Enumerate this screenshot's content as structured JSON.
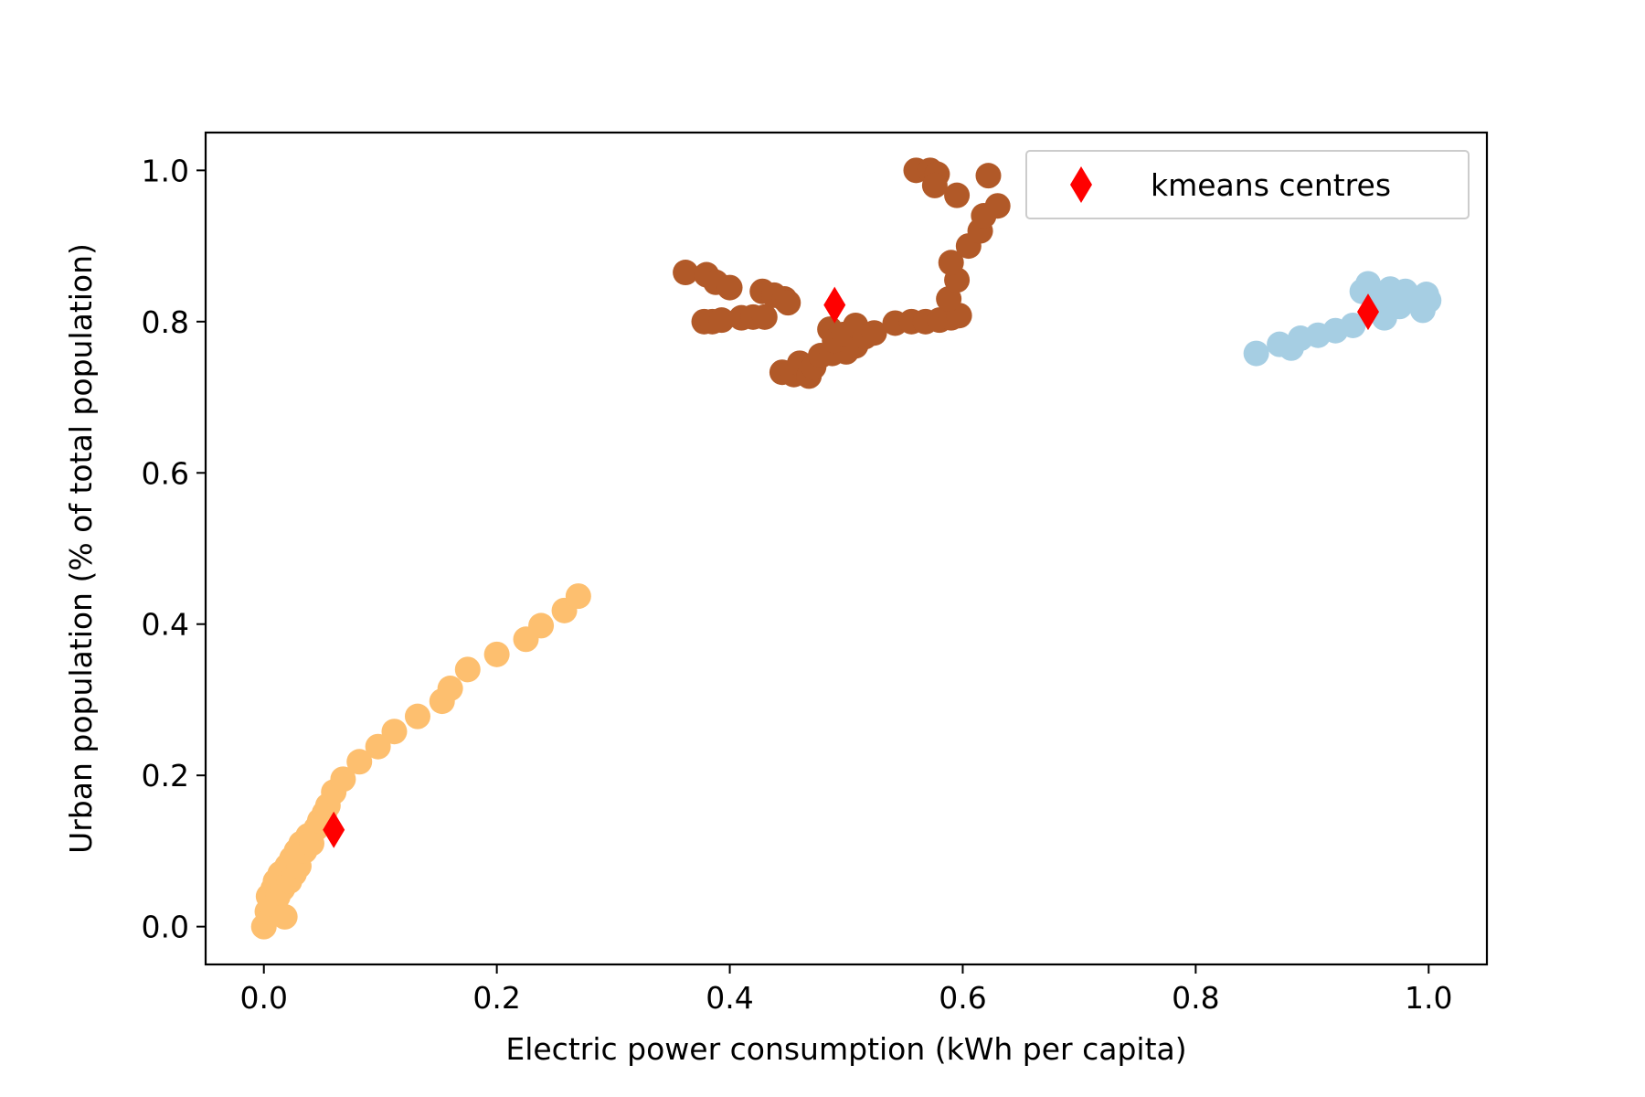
{
  "chart_data": {
    "type": "scatter",
    "xlabel": "Electric power consumption (kWh per capita)",
    "ylabel": "Urban population (% of total population)",
    "xlim": [
      -0.05,
      1.05
    ],
    "ylim": [
      -0.05,
      1.05
    ],
    "xticks": [
      0.0,
      0.2,
      0.4,
      0.6,
      0.8,
      1.0
    ],
    "yticks": [
      0.0,
      0.2,
      0.4,
      0.6,
      0.8,
      1.0
    ],
    "xtick_labels": [
      "0.0",
      "0.2",
      "0.4",
      "0.6",
      "0.8",
      "1.0"
    ],
    "ytick_labels": [
      "0.0",
      "0.2",
      "0.4",
      "0.6",
      "0.8",
      "1.0"
    ],
    "legend_position": "top-right",
    "grid": false,
    "series": [
      {
        "color": "#fdbf6f",
        "marker": "circle",
        "points": [
          [
            0.0,
            0.0
          ],
          [
            0.003,
            0.02
          ],
          [
            0.004,
            0.04
          ],
          [
            0.006,
            0.03
          ],
          [
            0.008,
            0.05
          ],
          [
            0.01,
            0.06
          ],
          [
            0.012,
            0.04
          ],
          [
            0.014,
            0.07
          ],
          [
            0.016,
            0.05
          ],
          [
            0.018,
            0.013
          ],
          [
            0.02,
            0.08
          ],
          [
            0.022,
            0.06
          ],
          [
            0.024,
            0.09
          ],
          [
            0.026,
            0.07
          ],
          [
            0.028,
            0.1
          ],
          [
            0.03,
            0.08
          ],
          [
            0.032,
            0.11
          ],
          [
            0.035,
            0.1
          ],
          [
            0.038,
            0.12
          ],
          [
            0.041,
            0.11
          ],
          [
            0.045,
            0.13
          ],
          [
            0.048,
            0.14
          ],
          [
            0.052,
            0.15
          ],
          [
            0.055,
            0.16
          ],
          [
            0.06,
            0.178
          ],
          [
            0.068,
            0.195
          ],
          [
            0.082,
            0.218
          ],
          [
            0.098,
            0.238
          ],
          [
            0.112,
            0.258
          ],
          [
            0.132,
            0.278
          ],
          [
            0.153,
            0.298
          ],
          [
            0.16,
            0.315
          ],
          [
            0.175,
            0.34
          ],
          [
            0.2,
            0.36
          ],
          [
            0.225,
            0.38
          ],
          [
            0.238,
            0.398
          ],
          [
            0.258,
            0.418
          ],
          [
            0.27,
            0.437
          ]
        ]
      },
      {
        "color": "#b15928",
        "marker": "circle",
        "points": [
          [
            0.362,
            0.865
          ],
          [
            0.38,
            0.862
          ],
          [
            0.388,
            0.852
          ],
          [
            0.4,
            0.845
          ],
          [
            0.378,
            0.8
          ],
          [
            0.385,
            0.8
          ],
          [
            0.393,
            0.802
          ],
          [
            0.41,
            0.805
          ],
          [
            0.42,
            0.806
          ],
          [
            0.43,
            0.806
          ],
          [
            0.428,
            0.84
          ],
          [
            0.438,
            0.835
          ],
          [
            0.447,
            0.83
          ],
          [
            0.45,
            0.825
          ],
          [
            0.445,
            0.733
          ],
          [
            0.455,
            0.73
          ],
          [
            0.46,
            0.745
          ],
          [
            0.468,
            0.728
          ],
          [
            0.472,
            0.74
          ],
          [
            0.478,
            0.755
          ],
          [
            0.488,
            0.758
          ],
          [
            0.5,
            0.76
          ],
          [
            0.508,
            0.768
          ],
          [
            0.486,
            0.79
          ],
          [
            0.49,
            0.775
          ],
          [
            0.498,
            0.783
          ],
          [
            0.508,
            0.795
          ],
          [
            0.516,
            0.78
          ],
          [
            0.524,
            0.785
          ],
          [
            0.542,
            0.798
          ],
          [
            0.556,
            0.8
          ],
          [
            0.568,
            0.8
          ],
          [
            0.58,
            0.802
          ],
          [
            0.59,
            0.805
          ],
          [
            0.597,
            0.808
          ],
          [
            0.588,
            0.83
          ],
          [
            0.595,
            0.855
          ],
          [
            0.59,
            0.878
          ],
          [
            0.605,
            0.9
          ],
          [
            0.615,
            0.92
          ],
          [
            0.618,
            0.94
          ],
          [
            0.63,
            0.953
          ],
          [
            0.56,
            1.0
          ],
          [
            0.572,
            1.0
          ],
          [
            0.578,
            0.995
          ],
          [
            0.576,
            0.98
          ],
          [
            0.595,
            0.967
          ],
          [
            0.622,
            0.993
          ]
        ]
      },
      {
        "color": "#a6cee3",
        "marker": "circle",
        "points": [
          [
            0.852,
            0.758
          ],
          [
            0.872,
            0.77
          ],
          [
            0.882,
            0.765
          ],
          [
            0.89,
            0.778
          ],
          [
            0.905,
            0.782
          ],
          [
            0.92,
            0.788
          ],
          [
            0.935,
            0.795
          ],
          [
            0.943,
            0.84
          ],
          [
            0.948,
            0.85
          ],
          [
            0.955,
            0.83
          ],
          [
            0.962,
            0.805
          ],
          [
            0.967,
            0.843
          ],
          [
            0.975,
            0.82
          ],
          [
            0.98,
            0.84
          ],
          [
            0.987,
            0.83
          ],
          [
            0.995,
            0.815
          ],
          [
            0.998,
            0.836
          ],
          [
            1.0,
            0.828
          ]
        ]
      },
      {
        "name": "kmeans centres",
        "color": "#ff0000",
        "marker": "thin-diamond",
        "points": [
          [
            0.06,
            0.128
          ],
          [
            0.49,
            0.822
          ],
          [
            0.948,
            0.813
          ]
        ]
      }
    ]
  }
}
